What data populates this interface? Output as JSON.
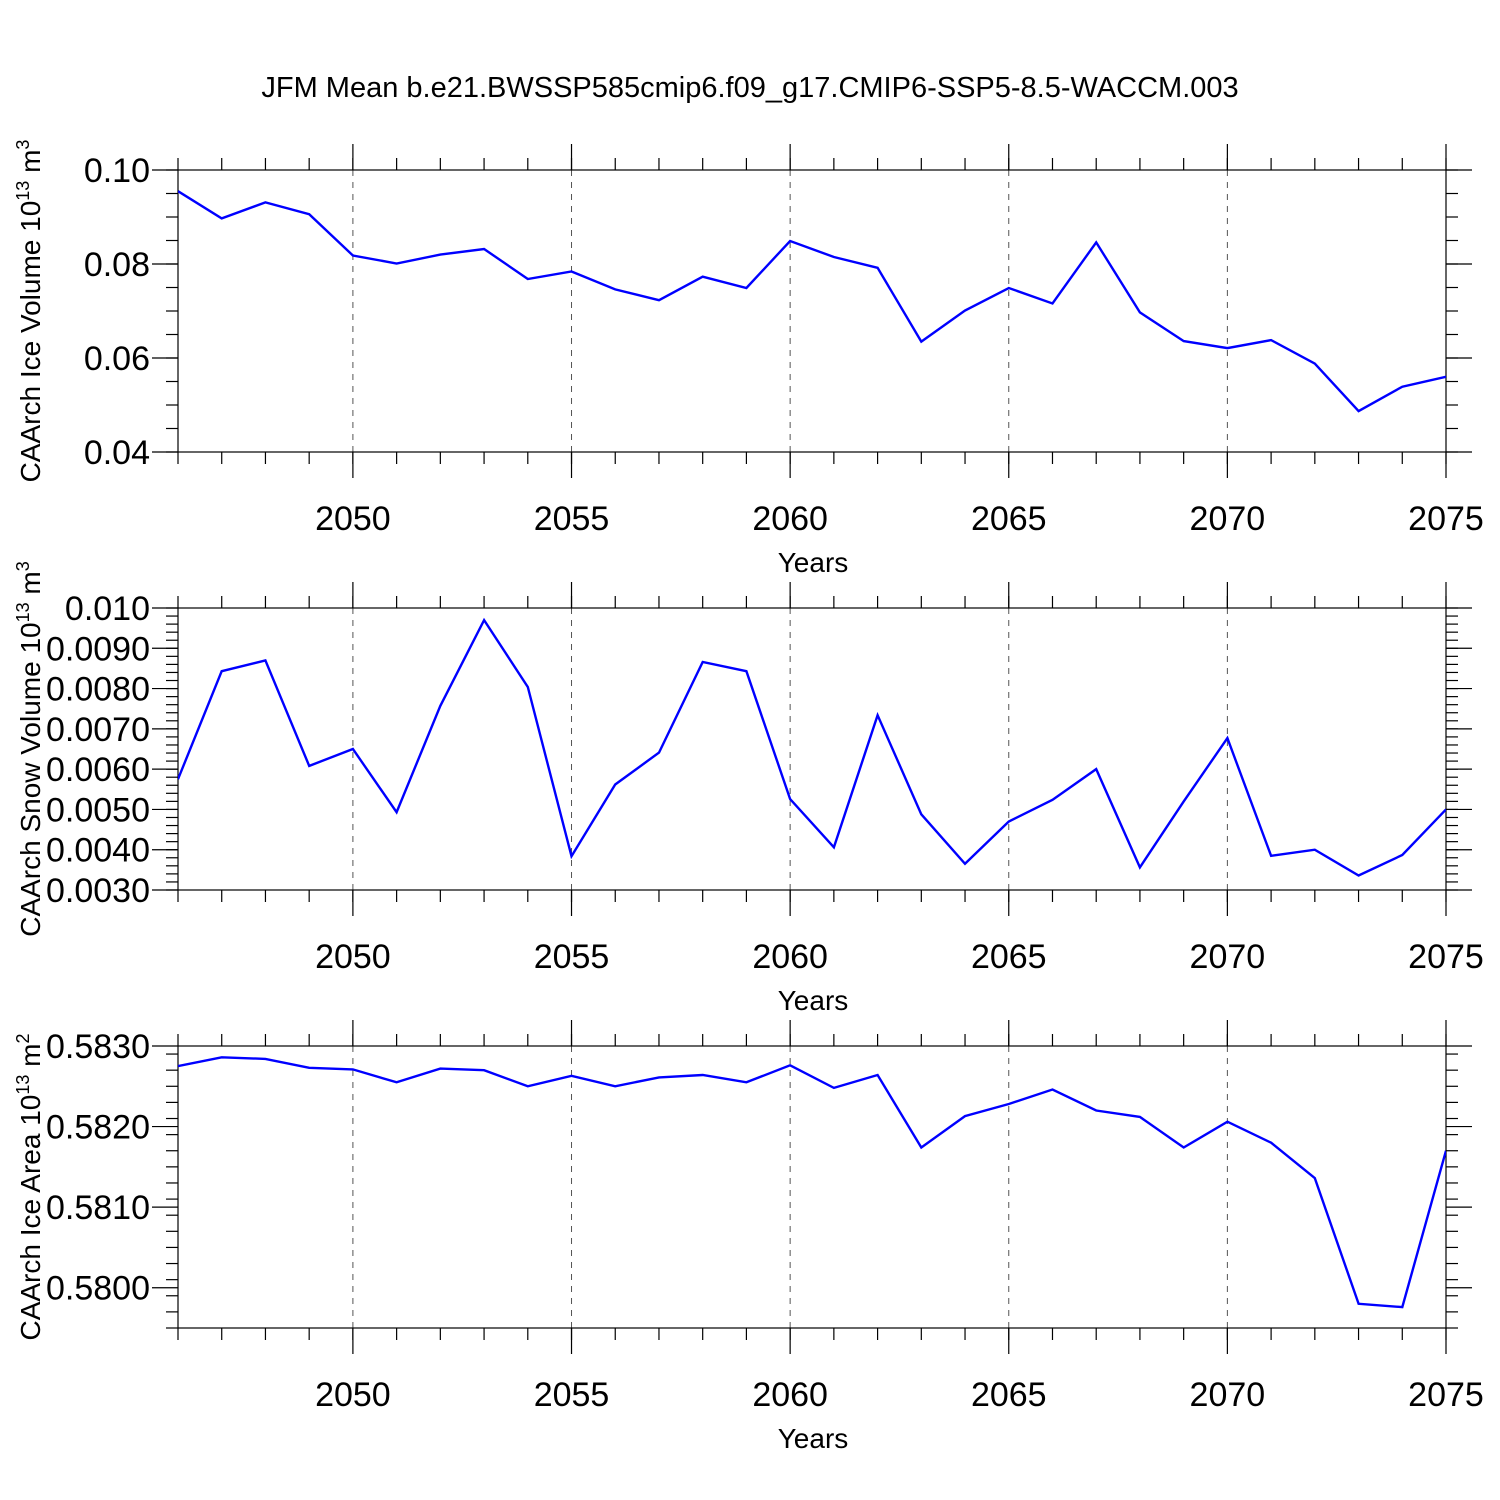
{
  "figure": {
    "title": "JFM Mean b.e21.BWSSP585cmip6.f09_g17.CMIP6-SSP5-8.5-WACCM.003",
    "line_color": "#0000ff"
  },
  "chart_data": [
    {
      "type": "line",
      "ylabel": "CAArch Ice Volume 10",
      "ylabel_exponent": "13",
      "ylabel_unit": "m",
      "ylabel_unit_exponent": "3",
      "xlabel": "Years",
      "xlim": [
        2046,
        2075
      ],
      "ylim": [
        0.04,
        0.1
      ],
      "x_ticks": [
        2050,
        2055,
        2060,
        2065,
        2070,
        2075
      ],
      "x_tick_labels": [
        "2050",
        "2055",
        "2060",
        "2065",
        "2070",
        "2075"
      ],
      "y_ticks": [
        0.04,
        0.06,
        0.08,
        0.1
      ],
      "y_tick_labels": [
        "0.04",
        "0.06",
        "0.08",
        "0.10"
      ],
      "y_minor_step": 0.005,
      "grid": "vertical dashed at major x ticks",
      "x": [
        2046,
        2047,
        2048,
        2049,
        2050,
        2051,
        2052,
        2053,
        2054,
        2055,
        2056,
        2057,
        2058,
        2059,
        2060,
        2061,
        2062,
        2063,
        2064,
        2065,
        2066,
        2067,
        2068,
        2069,
        2070,
        2071,
        2072,
        2073,
        2074,
        2075
      ],
      "values": [
        0.0955,
        0.0897,
        0.0931,
        0.0906,
        0.0818,
        0.0801,
        0.082,
        0.0832,
        0.0768,
        0.0784,
        0.0746,
        0.0723,
        0.0773,
        0.0749,
        0.0849,
        0.0815,
        0.0792,
        0.0635,
        0.0701,
        0.0749,
        0.0716,
        0.0846,
        0.0697,
        0.0636,
        0.0621,
        0.0638,
        0.0588,
        0.0487,
        0.0539,
        0.056
      ]
    },
    {
      "type": "line",
      "ylabel": "CAArch Snow Volume 10",
      "ylabel_exponent": "13",
      "ylabel_unit": "m",
      "ylabel_unit_exponent": "3",
      "xlabel": "Years",
      "xlim": [
        2046,
        2075
      ],
      "ylim": [
        0.003,
        0.01
      ],
      "x_ticks": [
        2050,
        2055,
        2060,
        2065,
        2070,
        2075
      ],
      "x_tick_labels": [
        "2050",
        "2055",
        "2060",
        "2065",
        "2070",
        "2075"
      ],
      "y_ticks": [
        0.003,
        0.004,
        0.005,
        0.006,
        0.007,
        0.008,
        0.009,
        0.01
      ],
      "y_tick_labels": [
        "0.0030",
        "0.0040",
        "0.0050",
        "0.0060",
        "0.0070",
        "0.0080",
        "0.0090",
        "0.010"
      ],
      "y_minor_step": 0.0002,
      "grid": "vertical dashed at major x ticks",
      "x": [
        2046,
        2047,
        2048,
        2049,
        2050,
        2051,
        2052,
        2053,
        2054,
        2055,
        2056,
        2057,
        2058,
        2059,
        2060,
        2061,
        2062,
        2063,
        2064,
        2065,
        2066,
        2067,
        2068,
        2069,
        2070,
        2071,
        2072,
        2073,
        2074,
        2075
      ],
      "values": [
        0.00575,
        0.00843,
        0.0087,
        0.00608,
        0.0065,
        0.00493,
        0.00757,
        0.0097,
        0.00804,
        0.00384,
        0.00562,
        0.00641,
        0.00866,
        0.00843,
        0.00526,
        0.00406,
        0.00734,
        0.00488,
        0.00365,
        0.0047,
        0.00524,
        0.006,
        0.00356,
        0.0052,
        0.00677,
        0.00385,
        0.004,
        0.00336,
        0.00387,
        0.005
      ]
    },
    {
      "type": "line",
      "ylabel": "CAArch Ice Area 10",
      "ylabel_exponent": "13",
      "ylabel_unit": "m",
      "ylabel_unit_exponent": "2",
      "xlabel": "Years",
      "xlim": [
        2046,
        2075
      ],
      "ylim": [
        0.5795,
        0.583
      ],
      "x_ticks": [
        2050,
        2055,
        2060,
        2065,
        2070,
        2075
      ],
      "x_tick_labels": [
        "2050",
        "2055",
        "2060",
        "2065",
        "2070",
        "2075"
      ],
      "y_ticks": [
        0.58,
        0.581,
        0.582,
        0.583
      ],
      "y_tick_labels": [
        "0.5800",
        "0.5810",
        "0.5820",
        "0.5830"
      ],
      "y_minor_step": 0.0002,
      "grid": "vertical dashed at major x ticks",
      "x": [
        2046,
        2047,
        2048,
        2049,
        2050,
        2051,
        2052,
        2053,
        2054,
        2055,
        2056,
        2057,
        2058,
        2059,
        2060,
        2061,
        2062,
        2063,
        2064,
        2065,
        2066,
        2067,
        2068,
        2069,
        2070,
        2071,
        2072,
        2073,
        2074,
        2075
      ],
      "values": [
        0.58275,
        0.58286,
        0.58284,
        0.58273,
        0.58271,
        0.58255,
        0.58272,
        0.5827,
        0.5825,
        0.58263,
        0.5825,
        0.58261,
        0.58264,
        0.58255,
        0.58276,
        0.58248,
        0.58264,
        0.58174,
        0.58213,
        0.58228,
        0.58246,
        0.5822,
        0.58212,
        0.58174,
        0.58206,
        0.5818,
        0.58136,
        0.5798,
        0.57976,
        0.5817
      ]
    }
  ]
}
